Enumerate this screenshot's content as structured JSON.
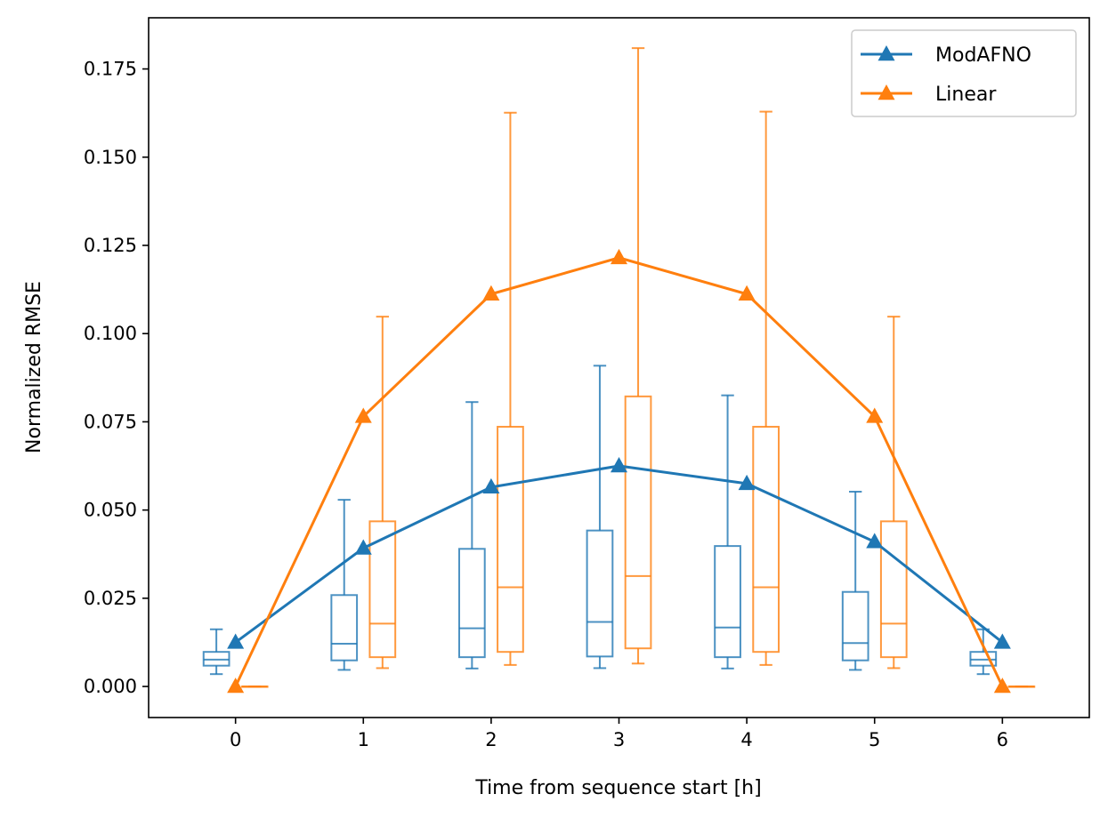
{
  "chart_data": {
    "type": "line",
    "title": "",
    "xlabel": "Time from sequence start [h]",
    "ylabel": "Normalized RMSE",
    "xlim": [
      -0.68,
      6.68
    ],
    "ylim": [
      -0.0088,
      0.1895
    ],
    "x_ticks": [
      0,
      1,
      2,
      3,
      4,
      5,
      6
    ],
    "x_tick_labels": [
      "0",
      "1",
      "2",
      "3",
      "4",
      "5",
      "6"
    ],
    "y_ticks": [
      0.0,
      0.025,
      0.05,
      0.075,
      0.1,
      0.125,
      0.15,
      0.175
    ],
    "y_tick_labels": [
      "0.000",
      "0.025",
      "0.050",
      "0.075",
      "0.100",
      "0.125",
      "0.150",
      "0.175"
    ],
    "grid": false,
    "legend_position": "top-right",
    "series": [
      {
        "name": "ModAFNO",
        "color": "#1f77b4",
        "marker": "triangle-up",
        "x": [
          0,
          1,
          2,
          3,
          4,
          5,
          6
        ],
        "values": [
          0.0125,
          0.0392,
          0.0565,
          0.0625,
          0.0575,
          0.041,
          0.0125
        ]
      },
      {
        "name": "Linear",
        "color": "#ff7f0e",
        "marker": "triangle-up",
        "x": [
          0,
          1,
          2,
          3,
          4,
          5,
          6
        ],
        "values": [
          0.0,
          0.0765,
          0.1112,
          0.1215,
          0.1112,
          0.0765,
          0.0
        ]
      }
    ],
    "boxplots": [
      {
        "series": "ModAFNO",
        "color": "#1f77b4",
        "offset": -0.15,
        "boxes": [
          {
            "x": 0,
            "whislo": 0.0035,
            "q1": 0.0059,
            "med": 0.0076,
            "q3": 0.0098,
            "whishi": 0.0162
          },
          {
            "x": 1,
            "whislo": 0.0047,
            "q1": 0.0074,
            "med": 0.0121,
            "q3": 0.0259,
            "whishi": 0.0529
          },
          {
            "x": 2,
            "whislo": 0.0051,
            "q1": 0.0083,
            "med": 0.0165,
            "q3": 0.039,
            "whishi": 0.0806
          },
          {
            "x": 3,
            "whislo": 0.0052,
            "q1": 0.0085,
            "med": 0.0183,
            "q3": 0.0442,
            "whishi": 0.0909
          },
          {
            "x": 4,
            "whislo": 0.0051,
            "q1": 0.0083,
            "med": 0.0167,
            "q3": 0.0398,
            "whishi": 0.0825
          },
          {
            "x": 5,
            "whislo": 0.0047,
            "q1": 0.0074,
            "med": 0.0123,
            "q3": 0.0268,
            "whishi": 0.0552
          },
          {
            "x": 6,
            "whislo": 0.0035,
            "q1": 0.0059,
            "med": 0.0076,
            "q3": 0.0098,
            "whishi": 0.0162
          }
        ]
      },
      {
        "series": "Linear",
        "color": "#ff7f0e",
        "offset": 0.15,
        "boxes": [
          {
            "x": 0,
            "whislo": 0.0,
            "q1": 0.0,
            "med": 0.0,
            "q3": 0.0,
            "whishi": 0.0
          },
          {
            "x": 1,
            "whislo": 0.0052,
            "q1": 0.0083,
            "med": 0.0178,
            "q3": 0.0468,
            "whishi": 0.1048
          },
          {
            "x": 2,
            "whislo": 0.0061,
            "q1": 0.0098,
            "med": 0.0281,
            "q3": 0.0736,
            "whishi": 0.1626
          },
          {
            "x": 3,
            "whislo": 0.0065,
            "q1": 0.0108,
            "med": 0.0313,
            "q3": 0.0822,
            "whishi": 0.1809
          },
          {
            "x": 4,
            "whislo": 0.0061,
            "q1": 0.0098,
            "med": 0.0281,
            "q3": 0.0736,
            "whishi": 0.1629
          },
          {
            "x": 5,
            "whislo": 0.0052,
            "q1": 0.0083,
            "med": 0.0178,
            "q3": 0.0468,
            "whishi": 0.1048
          },
          {
            "x": 6,
            "whislo": 0.0,
            "q1": 0.0,
            "med": 0.0,
            "q3": 0.0,
            "whishi": 0.0
          }
        ]
      }
    ]
  }
}
